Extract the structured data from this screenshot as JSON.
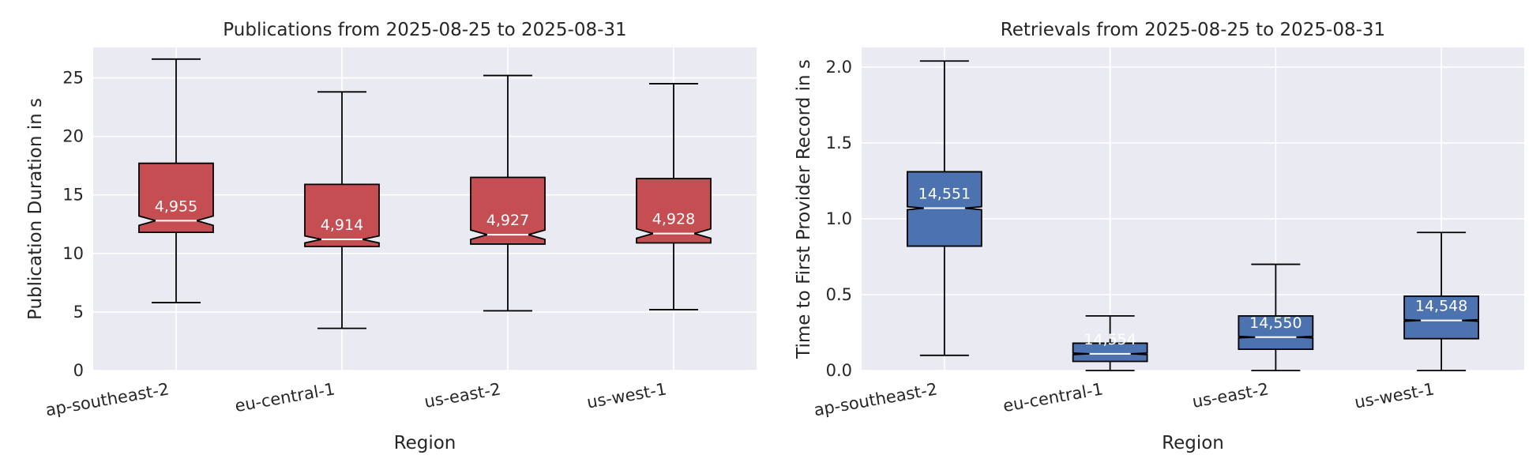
{
  "chart_data": [
    {
      "type": "box",
      "title": "Publications from 2025-08-25 to 2025-08-31",
      "xlabel": "Region",
      "ylabel": "Publication Duration in s",
      "ylim": [
        0,
        27.6
      ],
      "yticks": [
        0,
        5,
        10,
        15,
        20,
        25
      ],
      "ytick_labels": [
        "0",
        "5",
        "10",
        "15",
        "20",
        "25"
      ],
      "grid": true,
      "box_color": "#c44e52",
      "categories": [
        "ap-southeast-2",
        "eu-central-1",
        "us-east-2",
        "us-west-1"
      ],
      "boxes": [
        {
          "whislo": 5.8,
          "q1": 11.8,
          "med": 12.8,
          "q3": 17.7,
          "whishi": 26.6,
          "notch_lo": 12.4,
          "notch_hi": 13.2,
          "count": "4,955"
        },
        {
          "whislo": 3.6,
          "q1": 10.6,
          "med": 11.2,
          "q3": 15.9,
          "whishi": 23.8,
          "notch_lo": 10.9,
          "notch_hi": 11.5,
          "count": "4,914"
        },
        {
          "whislo": 5.1,
          "q1": 10.8,
          "med": 11.6,
          "q3": 16.5,
          "whishi": 25.2,
          "notch_lo": 11.2,
          "notch_hi": 12.0,
          "count": "4,927"
        },
        {
          "whislo": 5.2,
          "q1": 10.9,
          "med": 11.7,
          "q3": 16.4,
          "whishi": 24.5,
          "notch_lo": 11.3,
          "notch_hi": 12.1,
          "count": "4,928"
        }
      ]
    },
    {
      "type": "box",
      "title": "Retrievals from 2025-08-25 to 2025-08-31",
      "xlabel": "Region",
      "ylabel": "Time to First Provider Record in s",
      "ylim": [
        0,
        2.13
      ],
      "yticks": [
        0,
        0.5,
        1.0,
        1.5,
        2.0
      ],
      "ytick_labels": [
        "0.0",
        "0.5",
        "1.0",
        "1.5",
        "2.0"
      ],
      "grid": true,
      "box_color": "#4c72b0",
      "categories": [
        "ap-southeast-2",
        "eu-central-1",
        "us-east-2",
        "us-west-1"
      ],
      "boxes": [
        {
          "whislo": 0.1,
          "q1": 0.82,
          "med": 1.07,
          "q3": 1.31,
          "whishi": 2.04,
          "notch_lo": 1.06,
          "notch_hi": 1.08,
          "count": "14,551"
        },
        {
          "whislo": 0.0,
          "q1": 0.06,
          "med": 0.11,
          "q3": 0.18,
          "whishi": 0.36,
          "notch_lo": 0.105,
          "notch_hi": 0.115,
          "count": "14,554"
        },
        {
          "whislo": 0.0,
          "q1": 0.14,
          "med": 0.22,
          "q3": 0.36,
          "whishi": 0.7,
          "notch_lo": 0.215,
          "notch_hi": 0.225,
          "count": "14,550"
        },
        {
          "whislo": 0.0,
          "q1": 0.21,
          "med": 0.33,
          "q3": 0.49,
          "whishi": 0.91,
          "notch_lo": 0.325,
          "notch_hi": 0.335,
          "count": "14,548"
        }
      ]
    }
  ]
}
